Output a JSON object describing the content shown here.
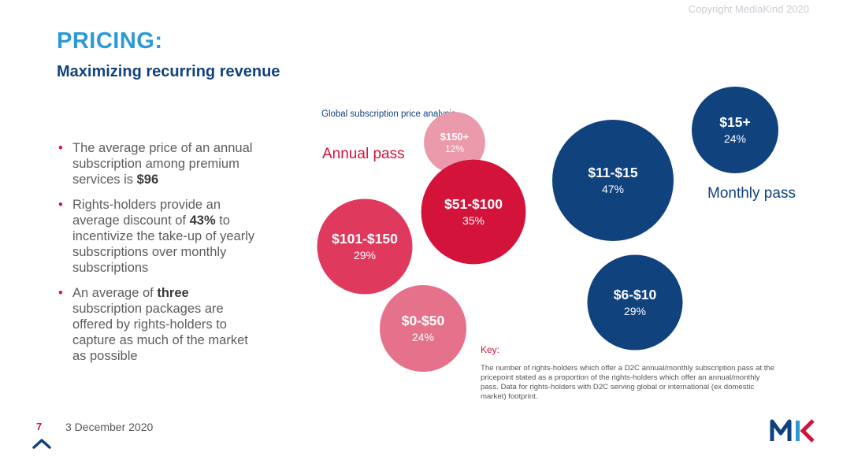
{
  "copyright": "Copyright MediaKind 2020",
  "header": {
    "title": "PRICING:",
    "subtitle": "Maximizing recurring revenue"
  },
  "bullets": [
    {
      "pre": "The average price of an annual subscription among premium services is ",
      "bold": "$96",
      "post": ""
    },
    {
      "pre": "Rights-holders provide an average discount of ",
      "bold": "43%",
      "post": " to incentivize the take-up of yearly subscriptions over monthly subscriptions"
    },
    {
      "pre": "An average of ",
      "bold": "three",
      "post": " subscription packages are offered by rights-holders to capture as much of the market as possible"
    }
  ],
  "chart_data": {
    "type": "bubble",
    "title": "Global subscription price analysis",
    "series": [
      {
        "name": "Annual pass",
        "color": "#d3133a",
        "points": [
          {
            "label": "$150+",
            "value": 12,
            "value_label": "12%"
          },
          {
            "label": "$51-$100",
            "value": 35,
            "value_label": "35%"
          },
          {
            "label": "$101-$150",
            "value": 29,
            "value_label": "29%"
          },
          {
            "label": "$0-$50",
            "value": 24,
            "value_label": "24%"
          }
        ]
      },
      {
        "name": "Monthly pass",
        "color": "#10427e",
        "points": [
          {
            "label": "$15+",
            "value": 24,
            "value_label": "24%"
          },
          {
            "label": "$11-$15",
            "value": 47,
            "value_label": "47%"
          },
          {
            "label": "$6-$10",
            "value": 29,
            "value_label": "29%"
          }
        ]
      }
    ],
    "unit": "%"
  },
  "key": {
    "title": "Key:",
    "text": "The number of rights-holders which offer a D2C annual/monthly subscription pass at the pricepoint stated as a proportion of the rights-holders which offer an annual/monthly pass. Data for rights-holders with D2C serving global or international (ex domestic market) footprint."
  },
  "footer": {
    "page": "7",
    "date": "3 December 2020"
  },
  "logo": {
    "text": "MK",
    "colors": {
      "m": "#10427e",
      "k_left": "#2b9ad6",
      "k_right": "#d3133a"
    }
  }
}
